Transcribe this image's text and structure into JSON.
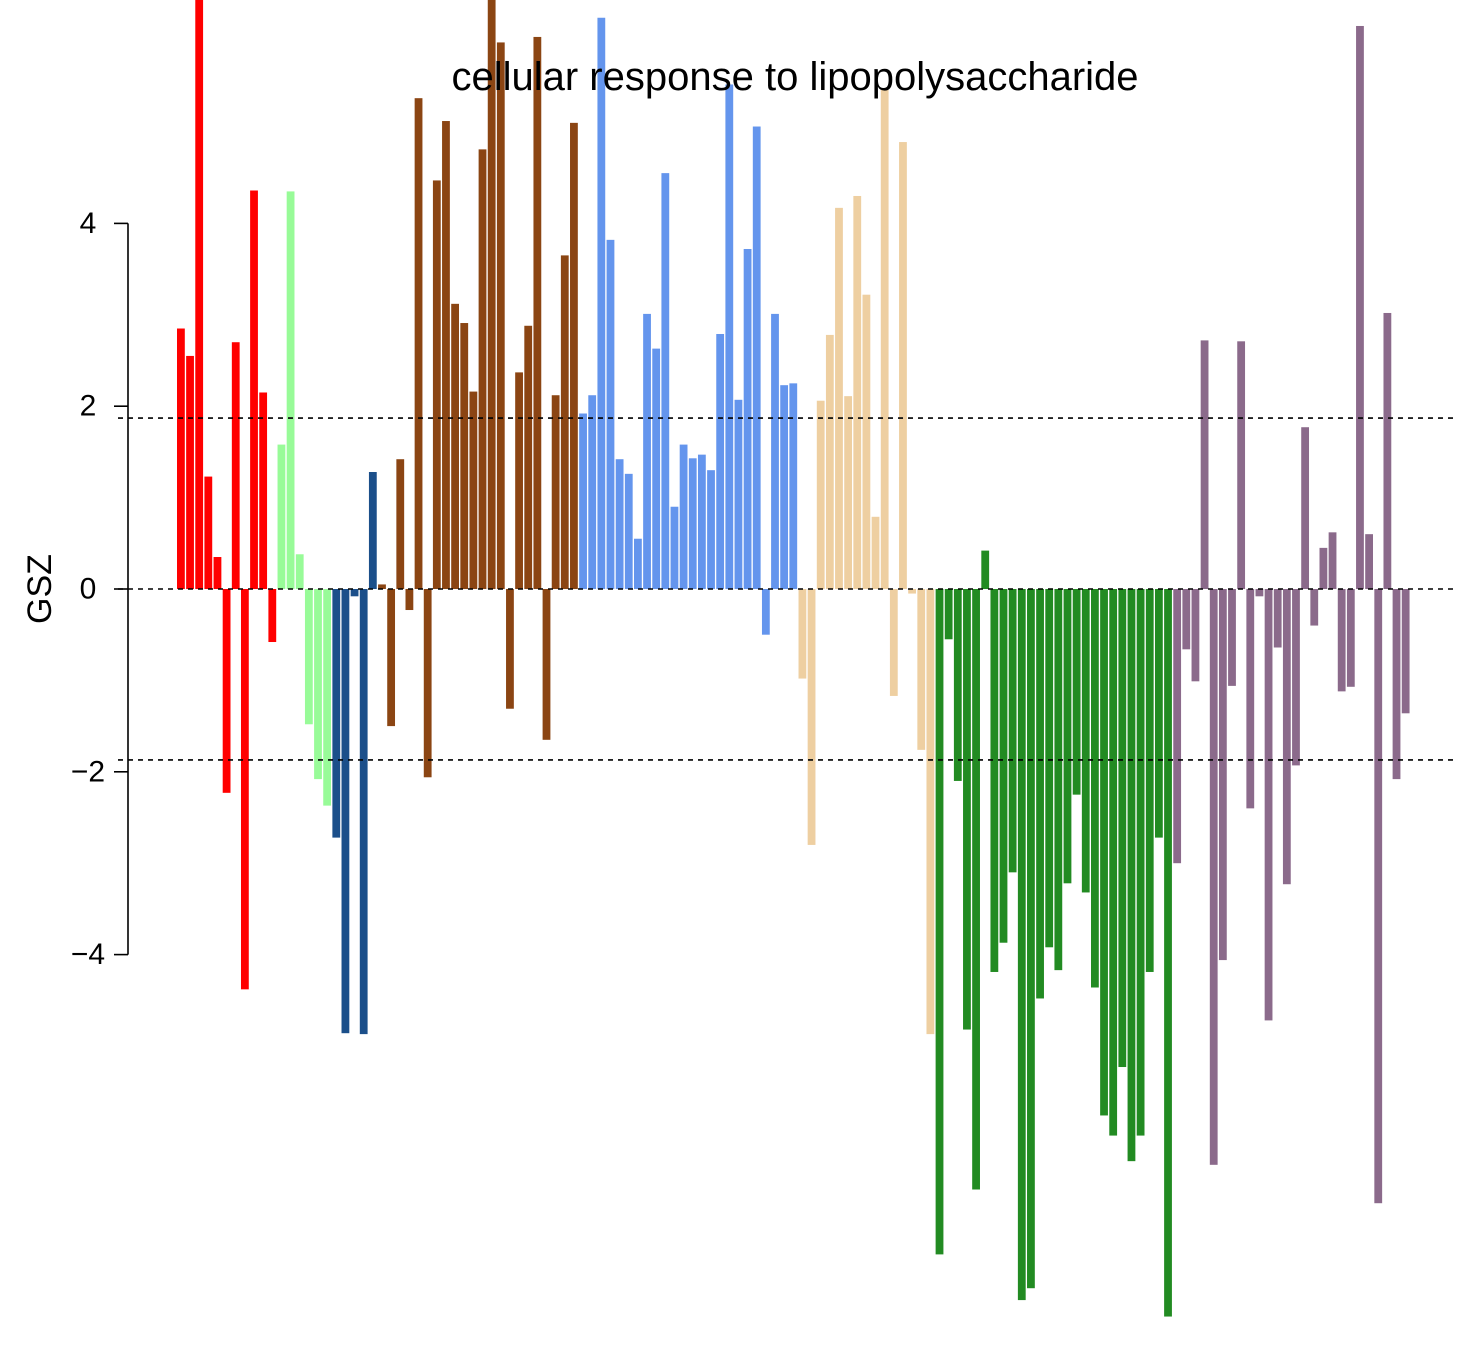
{
  "chart_data": {
    "type": "bar",
    "title": "cellular response to lipopolysaccharide",
    "ylabel": "GSZ",
    "xlabel": "",
    "yticks": [
      -4,
      -2,
      0,
      2,
      4
    ],
    "reference_lines": [
      1.87,
      0,
      -1.87
    ],
    "groups": [
      {
        "color": "#ff0000",
        "values": [
          2.85,
          2.55,
          6.5,
          1.23,
          0.35,
          -2.23,
          2.7,
          -4.38,
          4.36,
          2.15,
          -0.58
        ]
      },
      {
        "color": "#98fb98",
        "values": [
          1.58,
          4.35,
          0.38,
          -1.48,
          -2.08,
          -2.37
        ]
      },
      {
        "color": "#1b4f8a",
        "values": [
          -2.72,
          -4.86,
          -0.08,
          -4.87,
          1.28
        ]
      },
      {
        "color": "#8b4513",
        "values": [
          0.05,
          -1.5,
          1.42,
          -0.23,
          5.37,
          -2.06,
          4.47,
          5.12,
          3.12,
          2.91,
          2.16,
          4.81,
          6.5,
          5.98,
          -1.31,
          2.37,
          2.88,
          6.04,
          -1.65,
          2.12,
          3.65,
          5.1
        ]
      },
      {
        "color": "#6495ed",
        "values": [
          1.92,
          2.12,
          6.25,
          3.82,
          1.42,
          1.26,
          0.55,
          3.01,
          2.63,
          4.55,
          0.9,
          1.58,
          1.43,
          1.47,
          1.3,
          2.79,
          5.52,
          2.07,
          3.72,
          5.06,
          -0.5,
          3.01,
          2.23,
          2.25
        ]
      },
      {
        "color": "#eecfa1",
        "values": [
          -0.98,
          -2.8,
          2.06,
          2.78,
          4.17,
          2.11,
          4.3,
          3.22,
          0.79,
          5.48,
          -1.17,
          4.89,
          -0.05,
          -1.76,
          -4.87
        ]
      },
      {
        "color": "#228b22",
        "values": [
          -7.28,
          -0.55,
          -2.1,
          -4.82,
          -6.57,
          0.42,
          -4.19,
          -3.87,
          -3.1,
          -7.78,
          -7.65,
          -4.48,
          -3.92,
          -4.17,
          -3.22,
          -2.25,
          -3.32,
          -4.36,
          -5.76,
          -5.98,
          -5.23,
          -6.26,
          -5.98,
          -4.19,
          -2.72,
          -7.96
        ]
      },
      {
        "color": "#8b6a8b",
        "values": [
          -3.0,
          -0.66,
          -1.01,
          2.72,
          -6.3,
          -4.06,
          -1.06,
          2.71,
          -2.4,
          -0.08,
          -4.72,
          -0.64,
          -3.23,
          -1.93,
          1.77,
          -0.4,
          0.45,
          0.62,
          -1.12,
          -1.07,
          6.16,
          0.6,
          -6.72,
          3.02,
          -2.08,
          -1.36
        ]
      }
    ]
  }
}
